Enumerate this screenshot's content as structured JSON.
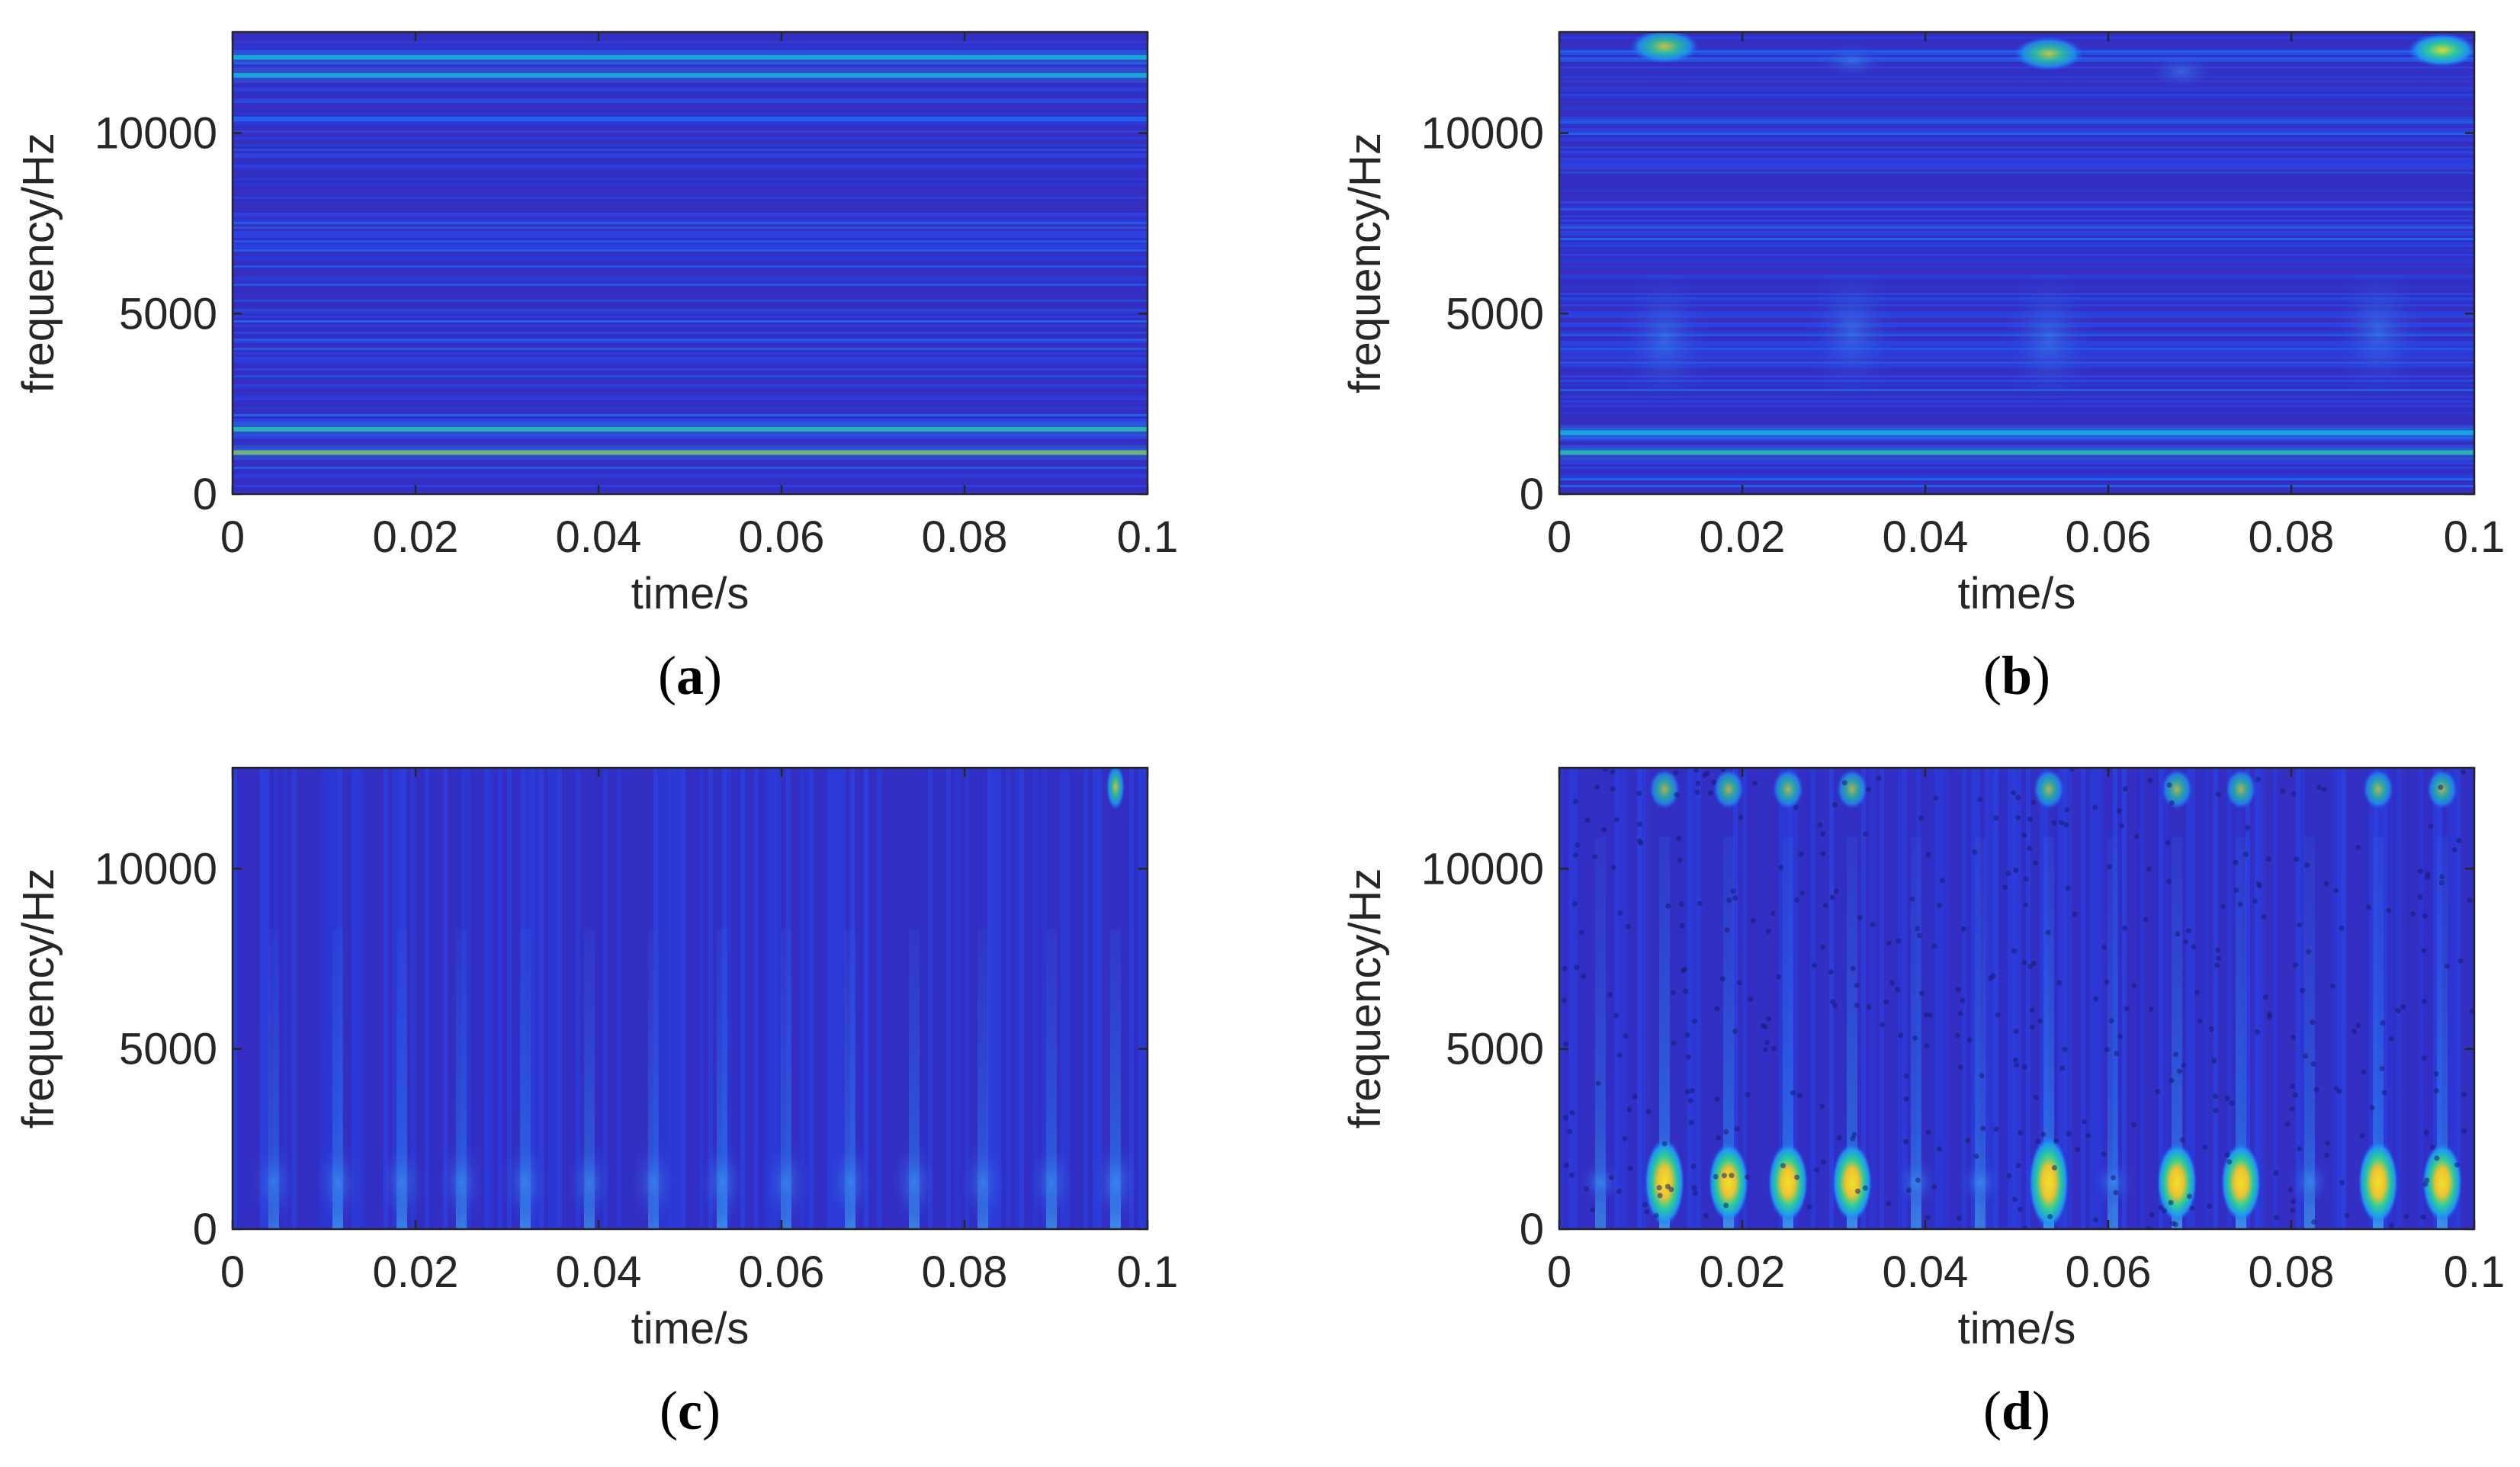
{
  "chart_data": [
    {
      "type": "heatmap",
      "caption": "a",
      "pattern": "horizontal-bands",
      "xlabel": "time/s",
      "ylabel": "frequency/Hz",
      "xlim": [
        0,
        0.1
      ],
      "ylim": [
        0,
        12800
      ],
      "xticks": [
        0,
        0.02,
        0.04,
        0.06,
        0.08,
        0.1
      ],
      "xtick_labels": [
        "0",
        "0.02",
        "0.04",
        "0.06",
        "0.08",
        "0.1"
      ],
      "yticks": [
        0,
        5000,
        10000
      ],
      "ytick_labels": [
        "0",
        "5000",
        "10000"
      ],
      "features": [
        {
          "freq": 1150,
          "intensity": 0.75
        },
        {
          "freq": 1800,
          "intensity": 0.55
        },
        {
          "freq": 11600,
          "intensity": 0.45
        },
        {
          "freq": 12100,
          "intensity": 0.4
        }
      ]
    },
    {
      "type": "heatmap",
      "caption": "b",
      "pattern": "bands-and-blobs",
      "xlabel": "time/s",
      "ylabel": "frequency/Hz",
      "xlim": [
        0,
        0.1
      ],
      "ylim": [
        0,
        12800
      ],
      "xticks": [
        0,
        0.02,
        0.04,
        0.06,
        0.08,
        0.1
      ],
      "xtick_labels": [
        "0",
        "0.02",
        "0.04",
        "0.06",
        "0.08",
        "0.1"
      ],
      "yticks": [
        0,
        5000,
        10000
      ],
      "ytick_labels": [
        "0",
        "5000",
        "10000"
      ],
      "features": [
        {
          "freq": 1150,
          "intensity": 0.65
        },
        {
          "freq": 1700,
          "intensity": 0.5
        },
        {
          "time": 0.0115,
          "freq": 12400,
          "intensity": 0.6
        },
        {
          "time": 0.032,
          "freq": 12000,
          "intensity": 0.45
        },
        {
          "time": 0.0535,
          "freq": 12200,
          "intensity": 0.55
        },
        {
          "time": 0.068,
          "freq": 11700,
          "intensity": 0.45
        },
        {
          "time": 0.0965,
          "freq": 12300,
          "intensity": 0.85
        },
        {
          "time": 0.0115,
          "freq": 4300,
          "intensity": 0.3
        },
        {
          "time": 0.032,
          "freq": 4500,
          "intensity": 0.3
        },
        {
          "time": 0.0535,
          "freq": 4300,
          "intensity": 0.3
        },
        {
          "time": 0.0895,
          "freq": 4500,
          "intensity": 0.3
        }
      ]
    },
    {
      "type": "heatmap",
      "caption": "c",
      "pattern": "vertical-streaks",
      "xlabel": "time/s",
      "ylabel": "frequency/Hz",
      "xlim": [
        0,
        0.1
      ],
      "ylim": [
        0,
        12800
      ],
      "xticks": [
        0,
        0.02,
        0.04,
        0.06,
        0.08,
        0.1
      ],
      "xtick_labels": [
        "0",
        "0.02",
        "0.04",
        "0.06",
        "0.08",
        "0.1"
      ],
      "yticks": [
        0,
        5000,
        10000
      ],
      "ytick_labels": [
        "0",
        "5000",
        "10000"
      ],
      "features": [
        {
          "time": 0.0045,
          "intensity": 0.35
        },
        {
          "time": 0.0115,
          "intensity": 0.55
        },
        {
          "time": 0.0185,
          "intensity": 0.5
        },
        {
          "time": 0.025,
          "intensity": 0.5
        },
        {
          "time": 0.032,
          "intensity": 0.6
        },
        {
          "time": 0.039,
          "intensity": 0.45
        },
        {
          "time": 0.046,
          "intensity": 0.4
        },
        {
          "time": 0.0535,
          "intensity": 0.7
        },
        {
          "time": 0.0605,
          "intensity": 0.45
        },
        {
          "time": 0.0675,
          "intensity": 0.55
        },
        {
          "time": 0.0745,
          "intensity": 0.6
        },
        {
          "time": 0.082,
          "intensity": 0.45
        },
        {
          "time": 0.0895,
          "intensity": 0.6
        },
        {
          "time": 0.0965,
          "intensity": 0.8
        }
      ]
    },
    {
      "type": "heatmap",
      "caption": "d",
      "pattern": "streaks-with-hotspots",
      "xlabel": "time/s",
      "ylabel": "frequency/Hz",
      "xlim": [
        0,
        0.1
      ],
      "ylim": [
        0,
        12800
      ],
      "xticks": [
        0,
        0.02,
        0.04,
        0.06,
        0.08,
        0.1
      ],
      "xtick_labels": [
        "0",
        "0.02",
        "0.04",
        "0.06",
        "0.08",
        "0.1"
      ],
      "yticks": [
        0,
        5000,
        10000
      ],
      "ytick_labels": [
        "0",
        "5000",
        "10000"
      ],
      "features": [
        {
          "time": 0.0045,
          "intensity": 0.45
        },
        {
          "time": 0.0115,
          "intensity": 0.95
        },
        {
          "time": 0.0185,
          "intensity": 0.85
        },
        {
          "time": 0.025,
          "intensity": 0.85
        },
        {
          "time": 0.032,
          "intensity": 0.85
        },
        {
          "time": 0.039,
          "intensity": 0.55
        },
        {
          "time": 0.046,
          "intensity": 0.5
        },
        {
          "time": 0.0535,
          "intensity": 1.0
        },
        {
          "time": 0.0605,
          "intensity": 0.5
        },
        {
          "time": 0.0675,
          "intensity": 0.85
        },
        {
          "time": 0.0745,
          "intensity": 0.85
        },
        {
          "time": 0.082,
          "intensity": 0.55
        },
        {
          "time": 0.0895,
          "intensity": 0.9
        },
        {
          "time": 0.0965,
          "intensity": 0.85
        }
      ]
    }
  ],
  "colors": {
    "background": "#2c2fc8",
    "colormap": [
      "#3a2fbe",
      "#2d46e6",
      "#1e6ef5",
      "#1e9bf0",
      "#14bed2",
      "#2dd296",
      "#a0d23c",
      "#f5c828",
      "#fae61e"
    ]
  }
}
